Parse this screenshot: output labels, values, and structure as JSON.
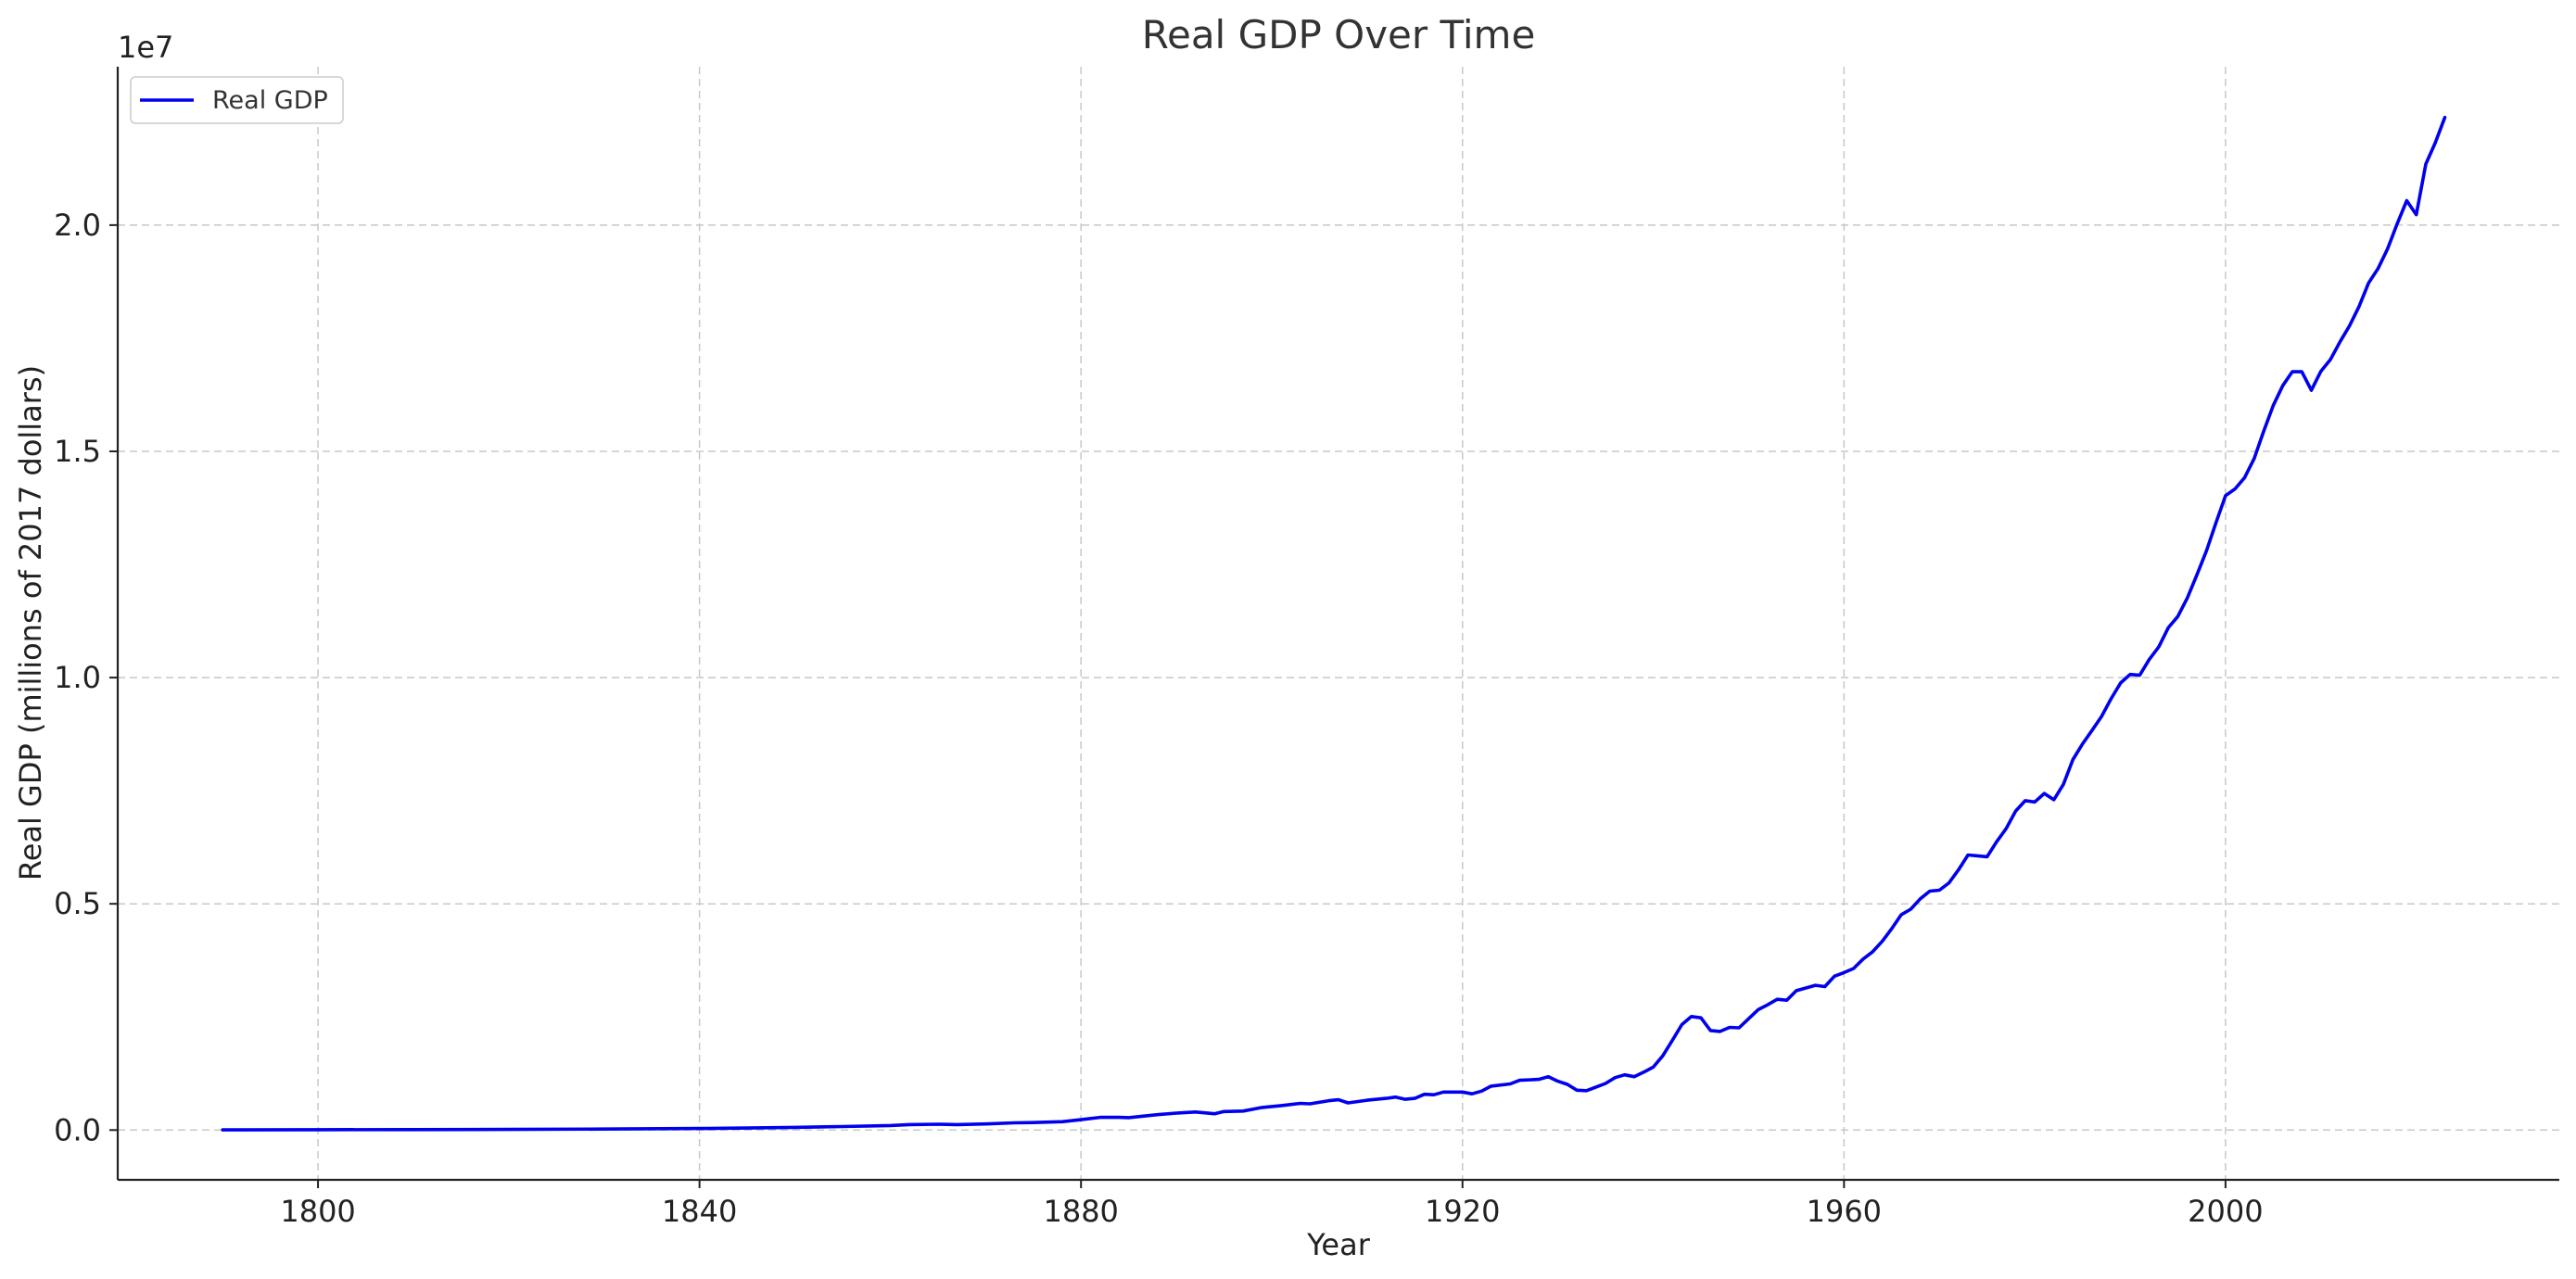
{
  "chart_data": {
    "type": "line",
    "title": "Real GDP Over Time",
    "xlabel": "Year",
    "ylabel": "Real GDP (millions of 2017 dollars)",
    "y_offset_label": "1e7",
    "xlim": [
      1779,
      2035
    ],
    "ylim": [
      -1100000,
      23500000
    ],
    "x_ticks": [
      1800,
      1840,
      1880,
      1920,
      1960,
      2000
    ],
    "x_tick_labels": [
      "1800",
      "1840",
      "1880",
      "1920",
      "1960",
      "2000"
    ],
    "y_ticks": [
      0,
      5000000,
      10000000,
      15000000,
      20000000
    ],
    "y_tick_labels": [
      "0.0",
      "0.5",
      "1.0",
      "1.5",
      "2.0"
    ],
    "grid": true,
    "legend": {
      "position": "top-left",
      "entries": [
        "Real GDP"
      ]
    },
    "series": [
      {
        "name": "Real GDP",
        "color": "#0000ee",
        "points": [
          [
            1790,
            5000
          ],
          [
            1800,
            8000
          ],
          [
            1810,
            11000
          ],
          [
            1820,
            15000
          ],
          [
            1830,
            22000
          ],
          [
            1840,
            35000
          ],
          [
            1845,
            45000
          ],
          [
            1850,
            60000
          ],
          [
            1855,
            78000
          ],
          [
            1860,
            100000
          ],
          [
            1862,
            120000
          ],
          [
            1865,
            130000
          ],
          [
            1867,
            120000
          ],
          [
            1870,
            135000
          ],
          [
            1873,
            160000
          ],
          [
            1875,
            165000
          ],
          [
            1878,
            185000
          ],
          [
            1880,
            230000
          ],
          [
            1882,
            280000
          ],
          [
            1884,
            280000
          ],
          [
            1885,
            275000
          ],
          [
            1888,
            340000
          ],
          [
            1890,
            375000
          ],
          [
            1892,
            400000
          ],
          [
            1894,
            360000
          ],
          [
            1895,
            410000
          ],
          [
            1897,
            420000
          ],
          [
            1899,
            500000
          ],
          [
            1901,
            540000
          ],
          [
            1903,
            590000
          ],
          [
            1904,
            580000
          ],
          [
            1906,
            650000
          ],
          [
            1907,
            670000
          ],
          [
            1908,
            600000
          ],
          [
            1910,
            660000
          ],
          [
            1912,
            700000
          ],
          [
            1913,
            730000
          ],
          [
            1914,
            680000
          ],
          [
            1915,
            700000
          ],
          [
            1916,
            790000
          ],
          [
            1917,
            780000
          ],
          [
            1918,
            840000
          ],
          [
            1920,
            840000
          ],
          [
            1921,
            800000
          ],
          [
            1922,
            860000
          ],
          [
            1923,
            970000
          ],
          [
            1925,
            1020000
          ],
          [
            1926,
            1100000
          ],
          [
            1928,
            1120000
          ],
          [
            1929,
            1180000
          ],
          [
            1930,
            1080000
          ],
          [
            1931,
            1010000
          ],
          [
            1932,
            880000
          ],
          [
            1933,
            870000
          ],
          [
            1934,
            950000
          ],
          [
            1935,
            1030000
          ],
          [
            1936,
            1160000
          ],
          [
            1937,
            1220000
          ],
          [
            1938,
            1180000
          ],
          [
            1939,
            1280000
          ],
          [
            1940,
            1390000
          ],
          [
            1941,
            1640000
          ],
          [
            1942,
            1980000
          ],
          [
            1943,
            2330000
          ],
          [
            1944,
            2510000
          ],
          [
            1945,
            2480000
          ],
          [
            1946,
            2200000
          ],
          [
            1947,
            2180000
          ],
          [
            1948,
            2270000
          ],
          [
            1949,
            2260000
          ],
          [
            1950,
            2460000
          ],
          [
            1951,
            2660000
          ],
          [
            1952,
            2770000
          ],
          [
            1953,
            2890000
          ],
          [
            1954,
            2870000
          ],
          [
            1955,
            3080000
          ],
          [
            1956,
            3140000
          ],
          [
            1957,
            3200000
          ],
          [
            1958,
            3170000
          ],
          [
            1959,
            3400000
          ],
          [
            1960,
            3480000
          ],
          [
            1961,
            3570000
          ],
          [
            1962,
            3780000
          ],
          [
            1963,
            3940000
          ],
          [
            1964,
            4170000
          ],
          [
            1965,
            4450000
          ],
          [
            1966,
            4760000
          ],
          [
            1967,
            4880000
          ],
          [
            1968,
            5110000
          ],
          [
            1969,
            5280000
          ],
          [
            1970,
            5300000
          ],
          [
            1971,
            5460000
          ],
          [
            1972,
            5750000
          ],
          [
            1973,
            6080000
          ],
          [
            1974,
            6060000
          ],
          [
            1975,
            6040000
          ],
          [
            1976,
            6370000
          ],
          [
            1977,
            6660000
          ],
          [
            1978,
            7050000
          ],
          [
            1979,
            7280000
          ],
          [
            1980,
            7250000
          ],
          [
            1981,
            7440000
          ],
          [
            1982,
            7300000
          ],
          [
            1983,
            7640000
          ],
          [
            1984,
            8190000
          ],
          [
            1985,
            8530000
          ],
          [
            1986,
            8830000
          ],
          [
            1987,
            9140000
          ],
          [
            1988,
            9530000
          ],
          [
            1989,
            9880000
          ],
          [
            1990,
            10070000
          ],
          [
            1991,
            10050000
          ],
          [
            1992,
            10400000
          ],
          [
            1993,
            10680000
          ],
          [
            1994,
            11100000
          ],
          [
            1995,
            11350000
          ],
          [
            1996,
            11760000
          ],
          [
            1997,
            12270000
          ],
          [
            1998,
            12800000
          ],
          [
            1999,
            13420000
          ],
          [
            2000,
            14020000
          ],
          [
            2001,
            14170000
          ],
          [
            2002,
            14420000
          ],
          [
            2003,
            14840000
          ],
          [
            2004,
            15440000
          ],
          [
            2005,
            16010000
          ],
          [
            2006,
            16450000
          ],
          [
            2007,
            16760000
          ],
          [
            2008,
            16760000
          ],
          [
            2009,
            16350000
          ],
          [
            2010,
            16770000
          ],
          [
            2011,
            17030000
          ],
          [
            2012,
            17420000
          ],
          [
            2013,
            17770000
          ],
          [
            2014,
            18200000
          ],
          [
            2015,
            18720000
          ],
          [
            2016,
            19040000
          ],
          [
            2017,
            19480000
          ],
          [
            2018,
            20030000
          ],
          [
            2019,
            20540000
          ],
          [
            2020,
            20230000
          ],
          [
            2021,
            21350000
          ],
          [
            2022,
            21820000
          ],
          [
            2023,
            22380000
          ]
        ]
      }
    ]
  }
}
